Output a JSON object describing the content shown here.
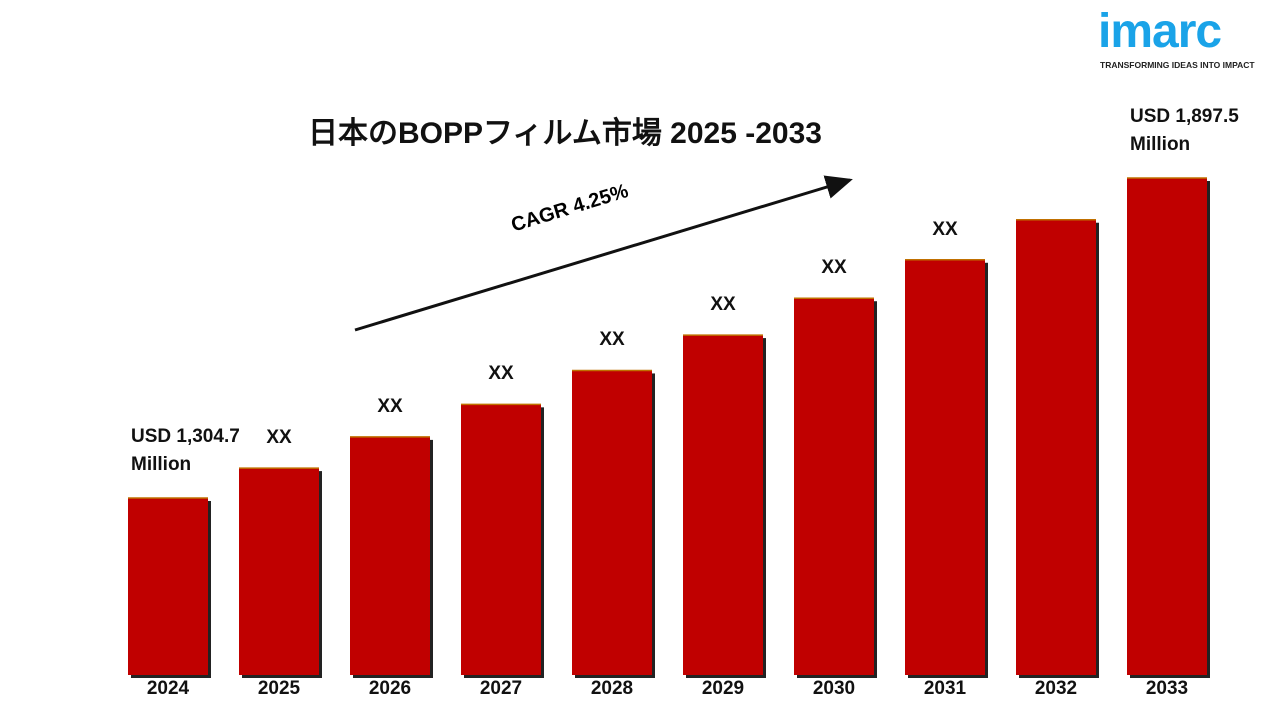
{
  "chart_data": {
    "type": "bar",
    "title": "日本のBOPPフィルム市場 2025 -2033",
    "annotation": "CAGR 4.25%",
    "categories": [
      "2024",
      "2025",
      "2026",
      "2027",
      "2028",
      "2029",
      "2030",
      "2031",
      "2032",
      "2033"
    ],
    "values": [
      1304.7,
      1360.1,
      1417.9,
      1478.2,
      1541.0,
      1606.5,
      1674.8,
      1746.0,
      1820.2,
      1897.5
    ],
    "value_labels": [
      "USD 1,304.7 Million",
      "XX",
      "XX",
      "XX",
      "XX",
      "XX",
      "XX",
      "XX",
      null,
      "USD 1,897.5 Million"
    ],
    "color": "#c00000"
  },
  "logo": {
    "name": "imarc",
    "tagline": "TRANSFORMING IDEAS INTO IMPACT"
  }
}
